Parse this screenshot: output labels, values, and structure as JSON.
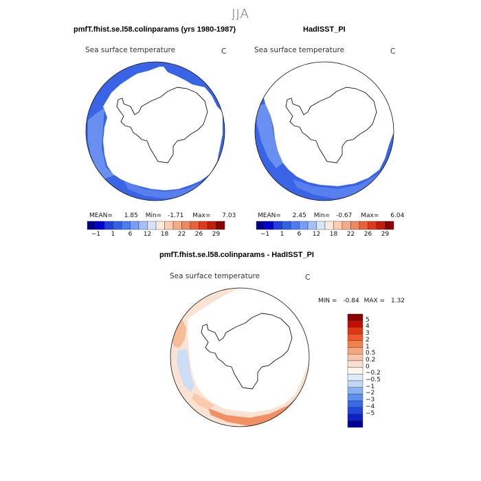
{
  "figure": {
    "season_title": "JJA"
  },
  "panels": [
    {
      "title": "pmfT.fhist.se.l58.colinparams (yrs 1980-1987)",
      "field_label": "Sea surface temperature",
      "unit": "C",
      "stats": {
        "mean_label": "MEAN=",
        "mean": "1.85",
        "min_label": "Min=",
        "min": "-1.71",
        "max_label": "Max=",
        "max": "7.03"
      }
    },
    {
      "title": "HadISST_PI",
      "field_label": "Sea surface temperature",
      "unit": "C",
      "stats": {
        "mean_label": "MEAN=",
        "mean": "2.45",
        "min_label": "Min=",
        "min": "-0.67",
        "max_label": "Max=",
        "max": "6.04"
      }
    },
    {
      "title": "pmfT.fhist.se.l58.colinparams - HadISST_PI",
      "field_label": "Sea surface temperature",
      "unit": "C",
      "stats": {
        "min_label": "MIN =",
        "min": "-0.84",
        "max_label": "MAX =",
        "max": "1.32"
      }
    }
  ],
  "colorbars": {
    "absolute": {
      "orientation": "horizontal",
      "colors": [
        "#00008b",
        "#0000cd",
        "#1f3fe0",
        "#2f62ea",
        "#4c7df0",
        "#779df5",
        "#a4c0f9",
        "#d5e4fc",
        "#fbeadc",
        "#f8cdb2",
        "#f4ab86",
        "#ef885d",
        "#e8623b",
        "#db3a1e",
        "#c21d0b",
        "#8b0000"
      ],
      "tick_labels": [
        "-1",
        "1",
        "6",
        "12",
        "18",
        "22",
        "26",
        "29"
      ]
    },
    "difference": {
      "orientation": "vertical",
      "colors_top_to_bottom": [
        "#8b0000",
        "#c20f05",
        "#e23512",
        "#f05a2a",
        "#f2804f",
        "#f5a67c",
        "#f7c6a9",
        "#fadfcf",
        "#fbf4ef",
        "#dfeaf8",
        "#c2d6f6",
        "#8ab1f0",
        "#5d8fec",
        "#3a6ae6",
        "#1f46df",
        "#0b22c4",
        "#000096"
      ],
      "tick_labels_top_to_bottom": [
        "5",
        "4",
        "3",
        "2",
        "1",
        "0.5",
        "0.2",
        "0",
        "-0.2",
        "-0.5",
        "-1",
        "-2",
        "-3",
        "-4",
        "-5"
      ]
    }
  }
}
